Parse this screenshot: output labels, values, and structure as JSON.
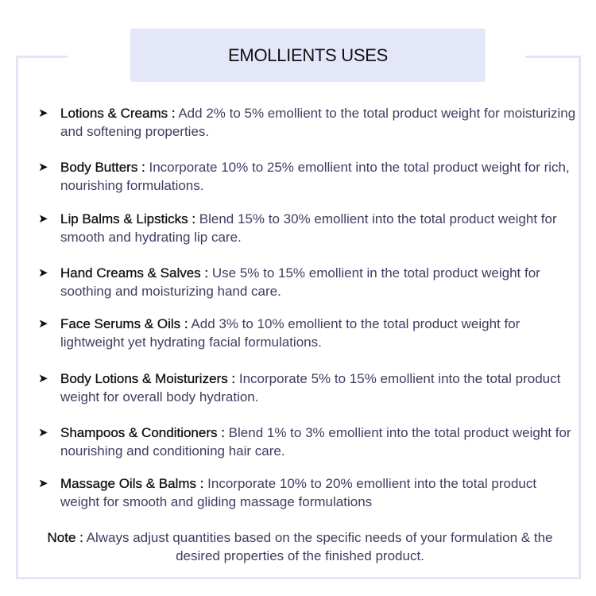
{
  "title": "EMOLLIENTS USES",
  "bullet_icon": "arrowhead-right",
  "items": [
    {
      "term": "Lotions & Creams :",
      "desc": " Add 2% to 5% emollient to the total product weight for moisturizing and softening properties."
    },
    {
      "term": "Body Butters :",
      "desc": " Incorporate 10% to 25% emollient into the total product weight for rich, nourishing formulations."
    },
    {
      "term": "Lip Balms & Lipsticks :",
      "desc": "  Blend 15% to 30% emollient into the total product weight for smooth and hydrating lip care."
    },
    {
      "term": "Hand Creams & Salves :",
      "desc": " Use 5% to 15% emollient in the total product weight for soothing and moisturizing hand care."
    },
    {
      "term": "Face Serums & Oils :",
      "desc": " Add 3% to 10% emollient to the total product weight for lightweight yet hydrating facial formulations."
    },
    {
      "term": "Body Lotions & Moisturizers :",
      "desc": " Incorporate 5% to 15% emollient into the total product weight for overall body hydration."
    },
    {
      "term": "Shampoos & Conditioners :",
      "desc": " Blend 1% to 3% emollient into the total product weight for nourishing and conditioning hair care."
    },
    {
      "term": "Massage Oils & Balms :",
      "desc": " Incorporate 10% to 20% emollient into the total product weight for smooth and gliding massage formulations"
    }
  ],
  "note": {
    "label": "Note :",
    "text": " Always adjust quantities based on the specific needs of your formulation & the desired properties of the finished product."
  }
}
